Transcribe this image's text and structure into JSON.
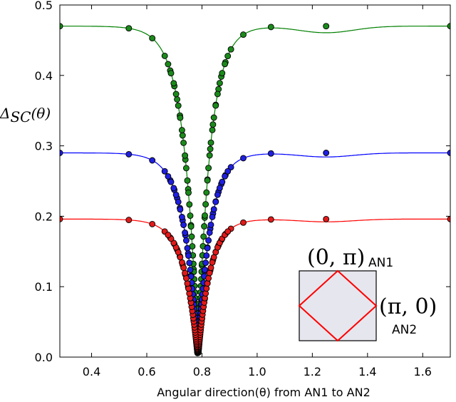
{
  "chart_data": {
    "type": "line",
    "xlabel": "Angular direction(θ) from AN1 to AN2",
    "ylabel": "Δ_SC(θ)",
    "ylabel_main": "Δ",
    "ylabel_sub": "SC",
    "ylabel_arg": "(θ)",
    "xlim": [
      0.285,
      1.7
    ],
    "ylim": [
      0.0,
      0.5
    ],
    "xticks": [
      "0.4",
      "0.6",
      "0.8",
      "1.0",
      "1.2",
      "1.4",
      "1.6"
    ],
    "xtick_values": [
      0.4,
      0.6,
      0.8,
      1.0,
      1.2,
      1.4,
      1.6
    ],
    "yticks": [
      "0.0",
      "0.1",
      "0.2",
      "0.3",
      "0.4",
      "0.5"
    ],
    "ytick_values": [
      0.0,
      0.1,
      0.2,
      0.3,
      0.4,
      0.5
    ],
    "center": 0.7854,
    "series": [
      {
        "name": "green",
        "color": "#008000",
        "marker_color": "#1a8a1a",
        "amplitude": 0.47,
        "x": [
          0.285,
          0.535,
          0.62,
          0.665,
          0.685,
          0.7,
          0.71,
          0.72,
          0.73,
          0.74,
          0.75,
          0.76,
          0.77,
          0.78,
          0.79,
          0.8,
          0.81,
          0.82,
          0.83,
          0.84,
          0.85,
          0.86,
          0.87,
          0.885,
          0.905,
          0.95,
          1.05,
          1.25,
          1.7
        ],
        "y": [
          0.468,
          0.459,
          0.449,
          0.438,
          0.43,
          0.417,
          0.399,
          0.377,
          0.349,
          0.31,
          0.253,
          0.181,
          0.092,
          0.02,
          0.034,
          0.124,
          0.208,
          0.276,
          0.327,
          0.363,
          0.39,
          0.408,
          0.421,
          0.434,
          0.443,
          0.456,
          0.464,
          0.459,
          0.469
        ]
      },
      {
        "name": "blue",
        "color": "#0000ff",
        "marker_color": "#1f1fe0",
        "amplitude": 0.29,
        "x": [
          0.285,
          0.535,
          0.62,
          0.665,
          0.685,
          0.7,
          0.71,
          0.72,
          0.73,
          0.74,
          0.75,
          0.76,
          0.77,
          0.78,
          0.79,
          0.8,
          0.81,
          0.82,
          0.83,
          0.84,
          0.85,
          0.86,
          0.87,
          0.885,
          0.905,
          0.95,
          1.05,
          1.25,
          1.7
        ],
        "y": [
          0.289,
          0.283,
          0.276,
          0.27,
          0.265,
          0.257,
          0.246,
          0.232,
          0.215,
          0.191,
          0.156,
          0.111,
          0.057,
          0.012,
          0.021,
          0.077,
          0.128,
          0.17,
          0.201,
          0.224,
          0.24,
          0.252,
          0.259,
          0.267,
          0.273,
          0.281,
          0.286,
          0.283,
          0.289
        ]
      },
      {
        "name": "red",
        "color": "#ff0000",
        "marker_color": "#e01a1a",
        "amplitude": 0.196,
        "x": [
          0.285,
          0.535,
          0.62,
          0.665,
          0.685,
          0.7,
          0.71,
          0.72,
          0.73,
          0.74,
          0.75,
          0.76,
          0.77,
          0.78,
          0.79,
          0.8,
          0.81,
          0.82,
          0.83,
          0.84,
          0.85,
          0.86,
          0.87,
          0.885,
          0.905,
          0.95,
          1.05,
          1.25,
          1.7
        ],
        "y": [
          0.196,
          0.192,
          0.187,
          0.183,
          0.179,
          0.174,
          0.167,
          0.157,
          0.145,
          0.129,
          0.105,
          0.075,
          0.039,
          0.008,
          0.014,
          0.052,
          0.087,
          0.115,
          0.136,
          0.151,
          0.163,
          0.17,
          0.176,
          0.181,
          0.185,
          0.19,
          0.194,
          0.192,
          0.196
        ]
      }
    ]
  },
  "inset": {
    "top_label": "(0, π)",
    "top_sub": "AN1",
    "right_label": "(π, 0)",
    "right_sub": "AN2",
    "box_fill": "#e8e8f0",
    "diamond_color": "#ff0000"
  }
}
